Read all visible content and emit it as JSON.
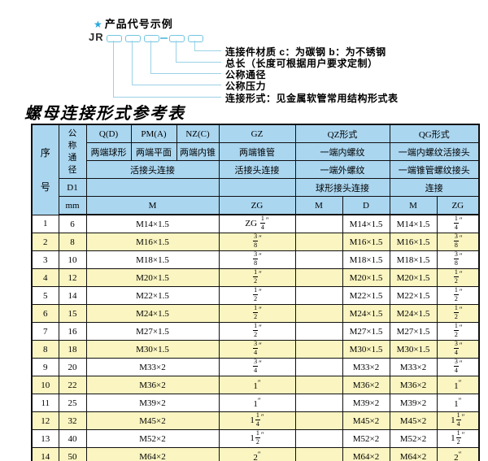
{
  "diagram": {
    "star_icon": "★",
    "heading": "产品代号示例",
    "code_prefix": "JR",
    "labels": [
      "连接件材质  c：为碳钢  b：为不锈钢",
      "总长（长度可根据用户要求定制）",
      "公称通径",
      "公称压力",
      "连接形式：见金属软管常用结构形式表"
    ]
  },
  "table_title": "螺母连接形式参考表",
  "table": {
    "header": {
      "no": "序号",
      "dn": "公称通径",
      "d1": "D1",
      "mm": "mm",
      "q": "Q(D)",
      "pm": "PM(A)",
      "nz": "NZ(C)",
      "gz": "GZ",
      "qz": "QZ形式",
      "qg": "QG形式",
      "q_sub": "两端球形",
      "pm_sub": "两端平面",
      "nz_sub": "两端内锥",
      "gz_sub": "两端锥管",
      "qz_sub1": "一端内螺纹",
      "qg_sub1": "一端内螺纹活接头",
      "left_conn": "活接头连接",
      "gz_conn": "活接头连接",
      "qz_sub2": "一端外螺纹",
      "qg_sub2": "一端锥管螺纹接头",
      "qz_conn": "球形接头连接",
      "qg_conn": "连接",
      "m": "M",
      "zg": "ZG",
      "qz_m": "M",
      "qz_d": "D",
      "qg_m": "M",
      "qg_zg": "ZG"
    },
    "row_columns": [
      "no",
      "dn_mm",
      "m",
      "gz_zg",
      "qz_m",
      "qz_d",
      "qg_m",
      "qg_zg"
    ],
    "rows": [
      [
        "1",
        "6",
        "M14×1.5",
        "ZG {1/4}″",
        "",
        "M14×1.5",
        "M14×1.5",
        "{1/4}″"
      ],
      [
        "2",
        "8",
        "M16×1.5",
        "{3/8}″",
        "",
        "M16×1.5",
        "M16×1.5",
        "{3/8}″"
      ],
      [
        "3",
        "10",
        "M18×1.5",
        "{3/8}″",
        "",
        "M18×1.5",
        "M18×1.5",
        "{3/8}″"
      ],
      [
        "4",
        "12",
        "M20×1.5",
        "{1/2}″",
        "",
        "M20×1.5",
        "M20×1.5",
        "{1/2}″"
      ],
      [
        "5",
        "14",
        "M22×1.5",
        "{1/2}″",
        "",
        "M22×1.5",
        "M22×1.5",
        "{1/2}″"
      ],
      [
        "6",
        "15",
        "M24×1.5",
        "{1/2}″",
        "",
        "M24×1.5",
        "M24×1.5",
        "{1/2}″"
      ],
      [
        "7",
        "16",
        "M27×1.5",
        "{1/2}″",
        "",
        "M27×1.5",
        "M27×1.5",
        "{1/2}″"
      ],
      [
        "8",
        "18",
        "M30×1.5",
        "{3/4}″",
        "",
        "M30×1.5",
        "M30×1.5",
        "{3/4}″"
      ],
      [
        "9",
        "20",
        "M33×2",
        "{3/4}″",
        "",
        "M33×2",
        "M33×2",
        "{3/4}″"
      ],
      [
        "10",
        "22",
        "M36×2",
        "1″",
        "",
        "M36×2",
        "M36×2",
        "1″"
      ],
      [
        "11",
        "25",
        "M39×2",
        "1″",
        "",
        "M39×2",
        "M39×2",
        "1″"
      ],
      [
        "12",
        "32",
        "M45×2",
        "1{1/4}″",
        "",
        "M45×2",
        "M45×2",
        "1{1/4}″"
      ],
      [
        "13",
        "40",
        "M52×2",
        "1{1/2}″",
        "",
        "M52×2",
        "M52×2",
        "1{1/2}″"
      ],
      [
        "14",
        "50",
        "M64×2",
        "2″",
        "",
        "M64×2",
        "M64×2",
        "2″"
      ]
    ]
  },
  "colors": {
    "header_bg": "#aad6f0",
    "alt_row_bg": "#faf5c1",
    "accent_star": "#29a8dc",
    "connector_line": "#9bd2e6",
    "border": "#101010"
  }
}
